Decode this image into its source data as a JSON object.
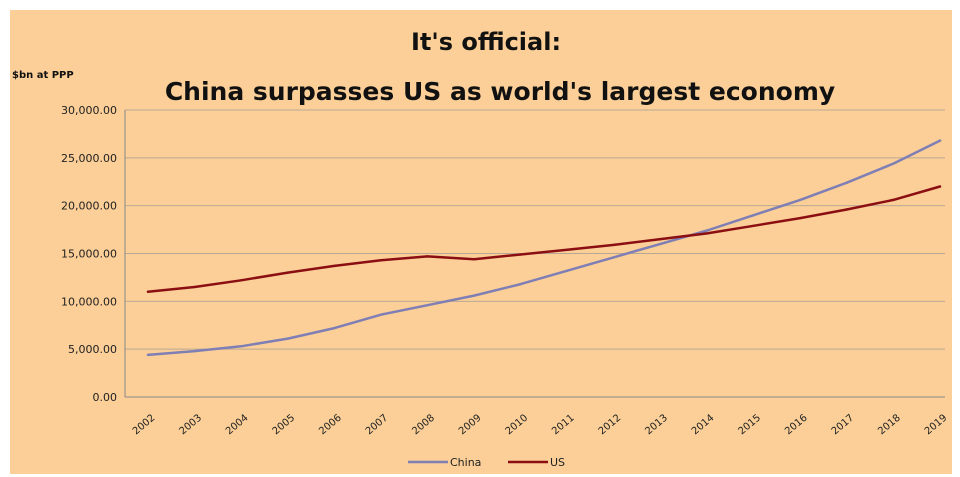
{
  "chart_data": {
    "type": "line",
    "title": "It's official:",
    "subtitle": "China surpasses US as world's largest economy",
    "ylabel": "$bn at PPP",
    "xlabel": "",
    "ylim": [
      0,
      30000
    ],
    "y_ticks": [
      "0.00",
      "5,000.00",
      "10,000.00",
      "15,000.00",
      "20,000.00",
      "25,000.00",
      "30,000.00"
    ],
    "categories": [
      "2002",
      "2003",
      "2004",
      "2005",
      "2006",
      "2007",
      "2008",
      "2009",
      "2010",
      "2011",
      "2012",
      "2013",
      "2014",
      "2015",
      "2016",
      "2017",
      "2018",
      "2019"
    ],
    "grid": true,
    "legend_position": "bottom",
    "series": [
      {
        "name": "China",
        "color": "#7f7fb5",
        "values": [
          4400,
          4800,
          5300,
          6100,
          7200,
          8600,
          9600,
          10600,
          11800,
          13200,
          14600,
          16000,
          17400,
          19000,
          20600,
          22400,
          24400,
          26800
        ]
      },
      {
        "name": "US",
        "color": "#8b0f12",
        "values": [
          11000,
          11500,
          12200,
          13000,
          13700,
          14300,
          14700,
          14400,
          14900,
          15400,
          15900,
          16500,
          17100,
          17900,
          18700,
          19600,
          20600,
          22000
        ]
      }
    ]
  }
}
